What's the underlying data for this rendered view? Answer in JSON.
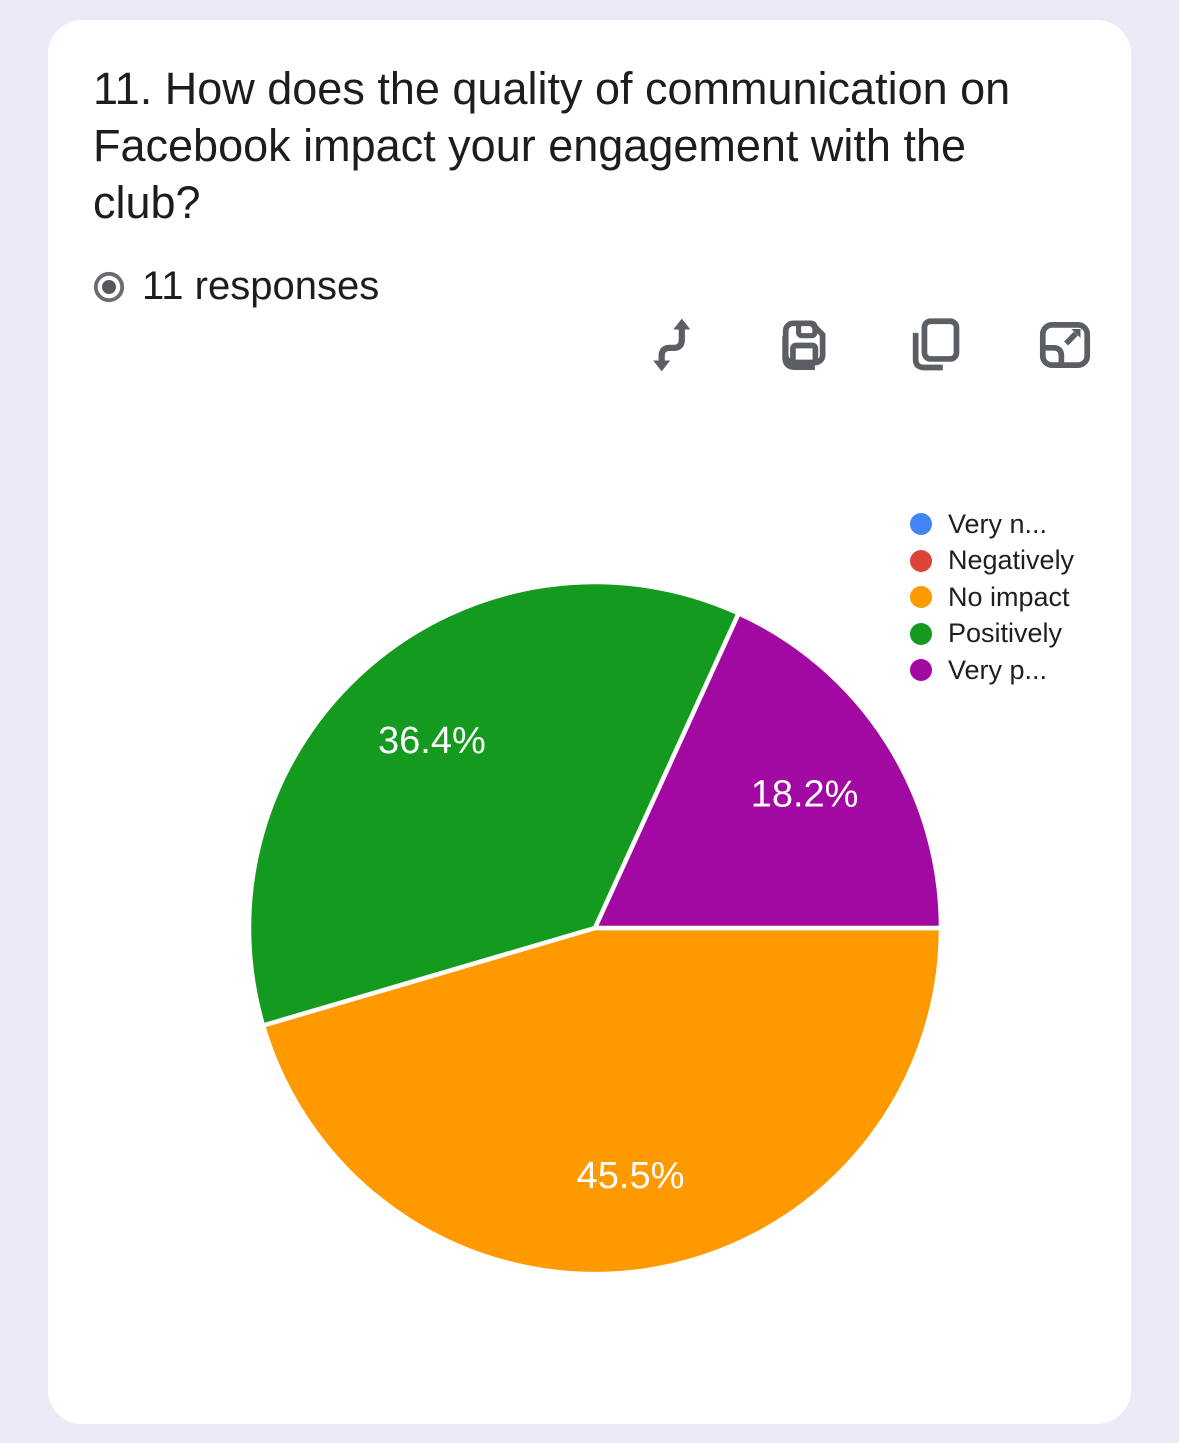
{
  "page": {
    "background_color": "#ECEAF7",
    "card_color": "#FFFFFF"
  },
  "question": {
    "title": "11. How does the quality of communication on Facebook impact your engagement with the club?",
    "responses_label": "11 responses"
  },
  "toolbar": {
    "icon_color": "#5B5F63",
    "buttons": [
      {
        "name": "change-chart-type",
        "icon": "swap-arrows-icon"
      },
      {
        "name": "save-chart",
        "icon": "save-icon"
      },
      {
        "name": "copy-chart",
        "icon": "copy-icon"
      },
      {
        "name": "expand-chart",
        "icon": "expand-icon"
      }
    ]
  },
  "chart_data": {
    "type": "pie",
    "title": "",
    "total_responses": 11,
    "categories": [
      "Very negatively",
      "Negatively",
      "No impact",
      "Positively",
      "Very positively"
    ],
    "values": [
      0,
      0,
      5,
      4,
      2
    ],
    "percentages": [
      0,
      0,
      45.5,
      36.4,
      18.2
    ],
    "percent_labels": [
      "",
      "",
      "45.5%",
      "36.4%",
      "18.2%"
    ],
    "colors": [
      "#4285F4",
      "#DB4437",
      "#FF9900",
      "#149A1E",
      "#A209A2"
    ],
    "legend_labels": [
      "Very n...",
      "Negatively",
      "No impact",
      "Positively",
      "Very p..."
    ],
    "legend_position": "right",
    "start_angle_deg": 90,
    "direction": "clockwise",
    "slice_border_color": "#FFFFFF",
    "slice_label_color": "#FFFFFF"
  }
}
